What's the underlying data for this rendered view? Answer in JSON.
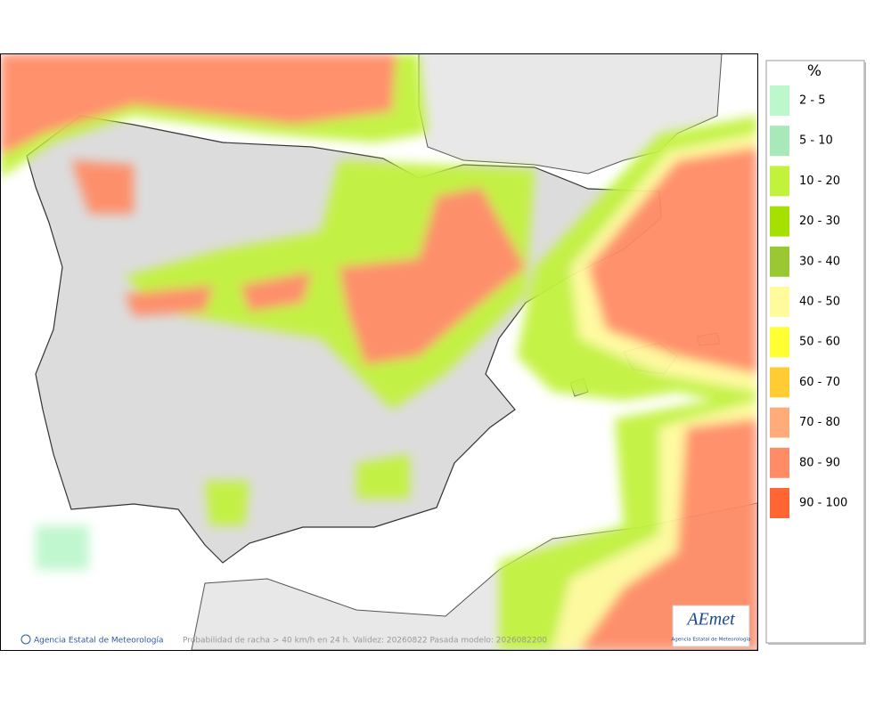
{
  "legend": {
    "title": "%",
    "items": [
      {
        "label": "2 - 5",
        "color": "#bdf7cc"
      },
      {
        "label": "5 - 10",
        "color": "#a9e8b8"
      },
      {
        "label": "10 - 20",
        "color": "#c2f23c"
      },
      {
        "label": "20 - 30",
        "color": "#a6e000"
      },
      {
        "label": "30 - 40",
        "color": "#99c833"
      },
      {
        "label": "40 - 50",
        "color": "#fffa9c"
      },
      {
        "label": "50 - 60",
        "color": "#ffff33"
      },
      {
        "label": "60 - 70",
        "color": "#ffcc33"
      },
      {
        "label": "70 - 80",
        "color": "#ffac7a"
      },
      {
        "label": "80 - 90",
        "color": "#ff8c66"
      },
      {
        "label": "90 - 100",
        "color": "#ff6633"
      }
    ]
  },
  "footer": {
    "credit": "Agencia Estatal de Meteorología",
    "caption": "Probabilidad de racha > 40 km/h en 24 h. Validez: 20260822 Pasada modelo: 2026082200"
  },
  "logo": {
    "text": "AEmet",
    "subtitle": "Agencia Estatal de Meteorología"
  }
}
